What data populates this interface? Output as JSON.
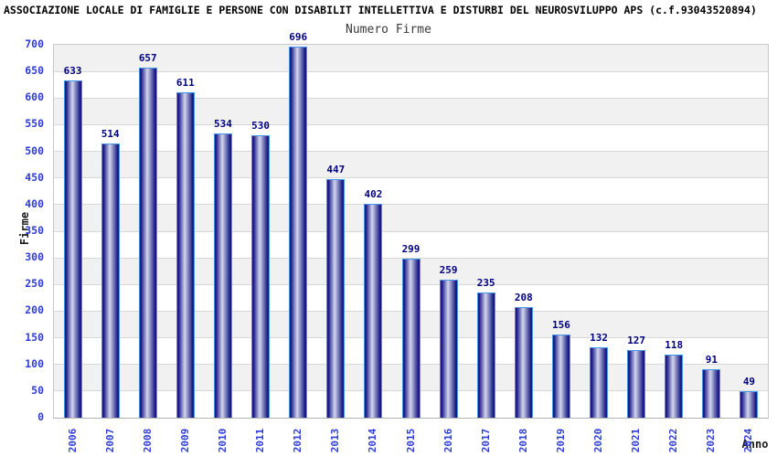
{
  "page": {
    "title": "ASSOCIAZIONE LOCALE DI FAMIGLIE E PERSONE CON DISABILIT INTELLETTIVA E DISTURBI DEL NEUROSVILUPPO APS (c.f.93043520894)"
  },
  "chart_data": {
    "type": "bar",
    "title": "Numero Firme",
    "xlabel": "Anno",
    "ylabel": "Firme",
    "categories": [
      "2006",
      "2007",
      "2008",
      "2009",
      "2010",
      "2011",
      "2012",
      "2013",
      "2014",
      "2015",
      "2016",
      "2017",
      "2018",
      "2019",
      "2020",
      "2021",
      "2022",
      "2023",
      "2024"
    ],
    "values": [
      633,
      514,
      657,
      611,
      534,
      530,
      696,
      447,
      402,
      299,
      259,
      235,
      208,
      156,
      132,
      127,
      118,
      91,
      49
    ],
    "ylim": [
      0,
      700
    ],
    "ytick_step": 50,
    "grid": true,
    "legend": "none",
    "band_colors": [
      "#f1f1f1",
      "#ffffff"
    ],
    "colors": {
      "title": "#000000",
      "subtitle": "#3a3a3a",
      "axis_title": "#1a1a1a",
      "tick_label": "#2e3cd8",
      "value_label": "#000080",
      "bar_edge": "#191985",
      "bar_center": "#d3d7ee",
      "bar_border": "#4596e8",
      "grid_line": "#d8d8d8",
      "plot_border": "#c9c9c9",
      "axis_line": "#b3b3b3"
    }
  }
}
